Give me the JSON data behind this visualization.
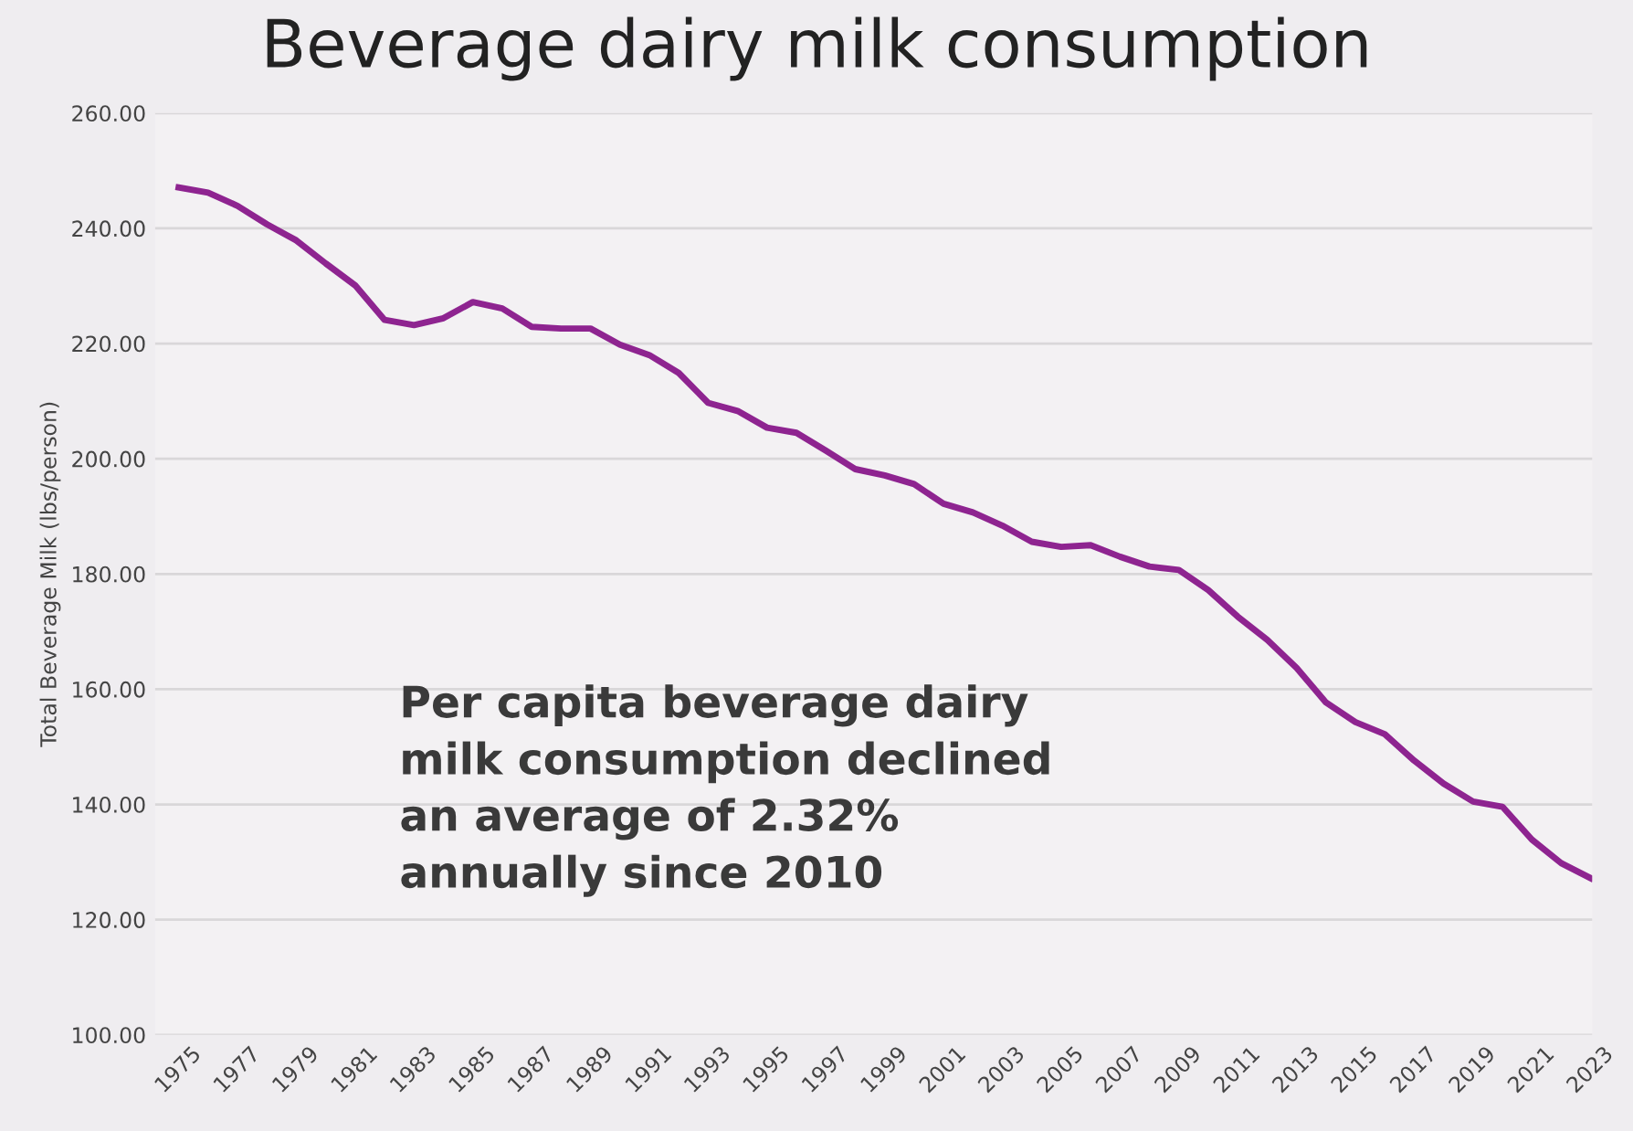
{
  "chart_data": {
    "type": "line",
    "title": "Beverage dairy milk consumption",
    "ylabel": "Total Beverage Milk (lbs/person)",
    "categories": [
      "1975",
      null,
      "1977",
      null,
      "1979",
      null,
      "1981",
      null,
      "1983",
      null,
      "1985",
      null,
      "1987",
      null,
      "1989",
      null,
      "1991",
      null,
      "1993",
      null,
      "1995",
      null,
      "1997",
      null,
      "1999",
      null,
      "2001",
      null,
      "2003",
      null,
      "2005",
      null,
      "2007",
      null,
      "2009",
      null,
      "2011",
      null,
      "2013",
      null,
      "2015",
      null,
      "2017",
      null,
      "2019",
      null,
      "2021",
      null,
      "2023"
    ],
    "series": [
      {
        "color": "#8e2490",
        "values": [
          247.1,
          246.2,
          243.9,
          240.7,
          237.9,
          233.9,
          230.1,
          224.1,
          223.2,
          224.4,
          227.2,
          226.1,
          222.9,
          222.6,
          222.6,
          219.8,
          218.0,
          214.9,
          209.7,
          208.3,
          205.4,
          204.5,
          201.4,
          198.2,
          197.1,
          195.6,
          192.2,
          190.7,
          188.4,
          185.6,
          184.7,
          185.0,
          183.0,
          181.3,
          180.7,
          177.2,
          172.6,
          168.6,
          163.7,
          157.7,
          154.3,
          152.2,
          147.6,
          143.6,
          140.5,
          139.6,
          133.9,
          129.8,
          127.2
        ]
      }
    ],
    "ylim": [
      100,
      260
    ],
    "yticks": [
      {
        "value": 100,
        "label": "100.00"
      },
      {
        "value": 120,
        "label": "120.00"
      },
      {
        "value": 140,
        "label": "140.00"
      },
      {
        "value": 160,
        "label": "160.00"
      },
      {
        "value": 180,
        "label": "180.00"
      },
      {
        "value": 200,
        "label": "200.00"
      },
      {
        "value": 220,
        "label": "220.00"
      },
      {
        "value": 240,
        "label": "240.00"
      },
      {
        "value": 260,
        "label": "260.00"
      }
    ],
    "grid": "y",
    "marker": "none",
    "line_style": "solid",
    "annotations": [
      "Per capita beverage dairy\nmilk consumption declined\nan average of 2.32%\nannually since 2010"
    ]
  }
}
